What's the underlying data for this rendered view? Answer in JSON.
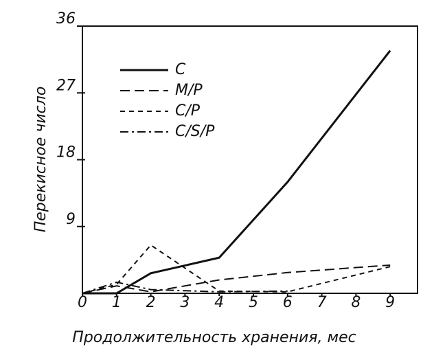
{
  "chart_data": {
    "type": "line",
    "x_label": "Продолжительность хранения, мес",
    "y_label": "Перекисное число",
    "x": [
      0,
      1,
      2,
      4,
      6,
      9
    ],
    "series": [
      {
        "name": "C",
        "color": "#111111",
        "values": [
          0,
          0,
          2.7,
          4.8,
          15,
          32.7
        ]
      },
      {
        "name": "M/P",
        "color": "#111111",
        "values": [
          0,
          1,
          0.2,
          1.8,
          2.8,
          3.8
        ]
      },
      {
        "name": "C/P",
        "color": "#111111",
        "values": [
          0,
          1.2,
          6.5,
          0.3,
          0.2,
          3.6
        ]
      },
      {
        "name": "C/S/P",
        "color": "#111111",
        "values": [
          0,
          1.5,
          0.5,
          0.2,
          0.3,
          null
        ]
      }
    ],
    "xlim": [
      0,
      9.8
    ],
    "ylim": [
      0,
      36
    ],
    "xticks": [
      0,
      1,
      2,
      3,
      4,
      5,
      6,
      7,
      8,
      9
    ],
    "yticks": [
      9,
      18,
      27,
      36
    ]
  }
}
